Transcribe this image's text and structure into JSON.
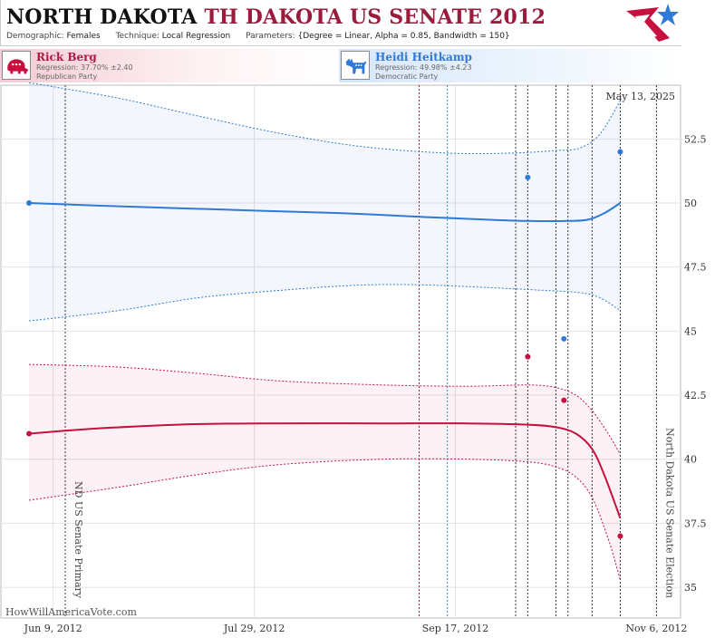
{
  "header": {
    "state": "NORTH DAKOTA",
    "race": "TH DAKOTA US SENATE 2012",
    "demographic_label": "Demographic:",
    "demographic_value": "Females",
    "technique_label": "Technique:",
    "technique_value": "Local Regression",
    "parameters_label": "Parameters:",
    "parameters_value": "{Degree = Linear, Alpha = 0.85, Bandwidth = 150}"
  },
  "candidates": [
    {
      "name": "Rick Berg",
      "regression": "Regression: 37.70% ±2.40",
      "party": "Republican Party",
      "color": "#c8103e",
      "icon": "republican-elephant-icon"
    },
    {
      "name": "Heidi Heitkamp",
      "regression": "Regression: 49.98% ±4.23",
      "party": "Democratic Party",
      "color": "#2e7ad6",
      "icon": "democratic-donkey-icon"
    }
  ],
  "chart_data": {
    "type": "line",
    "date_stamp": "May 13, 2025",
    "source": "HowWillAmericaVote.com",
    "x_tick_labels": [
      "Jun 9, 2012",
      "Jul 29, 2012",
      "Sep 17, 2012",
      "Nov 6, 2012"
    ],
    "xlim": [
      "2012-05-27",
      "2012-11-12"
    ],
    "y_ticks": [
      35,
      37.5,
      40,
      42.5,
      45,
      47.5,
      50,
      52.5
    ],
    "y_tick_labels": [
      "35",
      "37.5",
      "40",
      "42.5",
      "45",
      "47.5",
      "50",
      "52.5"
    ],
    "ylim": [
      33.8,
      54.6
    ],
    "grid": true,
    "events": [
      {
        "date": "2012-06-12",
        "label": "ND US Senate Primary"
      },
      {
        "date": "2012-11-06",
        "label": "North Dakota US Senate Election"
      }
    ],
    "poll_lines": [
      {
        "date": "2012-09-08",
        "color": "#9a1b4a"
      },
      {
        "date": "2012-09-15",
        "color": "#3a8fb0"
      },
      {
        "date": "2012-10-02",
        "color": "#333333"
      },
      {
        "date": "2012-10-05",
        "color": "#333333"
      },
      {
        "date": "2012-10-12",
        "color": "#333333"
      },
      {
        "date": "2012-10-15",
        "color": "#333333"
      },
      {
        "date": "2012-10-21",
        "color": "#333333"
      },
      {
        "date": "2012-10-28",
        "color": "#333333"
      }
    ],
    "series": [
      {
        "name": "Heidi Heitkamp",
        "color": "#2e7ad6",
        "fit": [
          [
            "2012-06-03",
            50.0
          ],
          [
            "2012-06-20",
            49.9
          ],
          [
            "2012-07-10",
            49.8
          ],
          [
            "2012-07-30",
            49.7
          ],
          [
            "2012-08-20",
            49.6
          ],
          [
            "2012-09-10",
            49.45
          ],
          [
            "2012-09-25",
            49.35
          ],
          [
            "2012-10-05",
            49.3
          ],
          [
            "2012-10-15",
            49.3
          ],
          [
            "2012-10-20",
            49.35
          ],
          [
            "2012-10-24",
            49.6
          ],
          [
            "2012-10-28",
            50.0
          ]
        ],
        "upper": [
          [
            "2012-06-03",
            54.7
          ],
          [
            "2012-06-25",
            54.1
          ],
          [
            "2012-07-15",
            53.4
          ],
          [
            "2012-08-05",
            52.7
          ],
          [
            "2012-08-25",
            52.2
          ],
          [
            "2012-09-15",
            51.95
          ],
          [
            "2012-10-01",
            51.95
          ],
          [
            "2012-10-12",
            52.05
          ],
          [
            "2012-10-18",
            52.15
          ],
          [
            "2012-10-23",
            52.7
          ],
          [
            "2012-10-28",
            54.0
          ]
        ],
        "lower": [
          [
            "2012-06-03",
            45.4
          ],
          [
            "2012-06-25",
            45.8
          ],
          [
            "2012-07-15",
            46.3
          ],
          [
            "2012-08-05",
            46.6
          ],
          [
            "2012-08-25",
            46.8
          ],
          [
            "2012-09-10",
            46.8
          ],
          [
            "2012-09-25",
            46.7
          ],
          [
            "2012-10-08",
            46.6
          ],
          [
            "2012-10-18",
            46.5
          ],
          [
            "2012-10-23",
            46.3
          ],
          [
            "2012-10-28",
            45.8
          ]
        ],
        "polls": [
          [
            "2012-06-03",
            50.0
          ],
          [
            "2012-10-05",
            51.0
          ],
          [
            "2012-10-14",
            44.7
          ],
          [
            "2012-10-28",
            52.0
          ]
        ]
      },
      {
        "name": "Rick Berg",
        "color": "#c8103e",
        "fit": [
          [
            "2012-06-03",
            41.0
          ],
          [
            "2012-06-20",
            41.2
          ],
          [
            "2012-07-10",
            41.35
          ],
          [
            "2012-07-30",
            41.4
          ],
          [
            "2012-08-30",
            41.4
          ],
          [
            "2012-09-20",
            41.4
          ],
          [
            "2012-10-05",
            41.35
          ],
          [
            "2012-10-12",
            41.25
          ],
          [
            "2012-10-17",
            41.0
          ],
          [
            "2012-10-21",
            40.4
          ],
          [
            "2012-10-24",
            39.4
          ],
          [
            "2012-10-28",
            37.7
          ]
        ],
        "upper": [
          [
            "2012-06-03",
            43.7
          ],
          [
            "2012-06-25",
            43.6
          ],
          [
            "2012-07-15",
            43.35
          ],
          [
            "2012-08-05",
            43.05
          ],
          [
            "2012-08-30",
            42.9
          ],
          [
            "2012-09-20",
            42.85
          ],
          [
            "2012-10-05",
            42.9
          ],
          [
            "2012-10-12",
            42.8
          ],
          [
            "2012-10-17",
            42.5
          ],
          [
            "2012-10-21",
            41.9
          ],
          [
            "2012-10-25",
            41.0
          ],
          [
            "2012-10-28",
            40.2
          ]
        ],
        "lower": [
          [
            "2012-06-03",
            38.4
          ],
          [
            "2012-06-25",
            38.9
          ],
          [
            "2012-07-15",
            39.4
          ],
          [
            "2012-08-05",
            39.8
          ],
          [
            "2012-08-30",
            40.0
          ],
          [
            "2012-09-20",
            40.0
          ],
          [
            "2012-10-05",
            39.9
          ],
          [
            "2012-10-12",
            39.7
          ],
          [
            "2012-10-17",
            39.3
          ],
          [
            "2012-10-21",
            38.5
          ],
          [
            "2012-10-25",
            36.9
          ],
          [
            "2012-10-28",
            35.3
          ]
        ],
        "polls": [
          [
            "2012-06-03",
            41.0
          ],
          [
            "2012-10-05",
            44.0
          ],
          [
            "2012-10-14",
            42.3
          ],
          [
            "2012-10-28",
            37.0
          ]
        ]
      }
    ]
  }
}
